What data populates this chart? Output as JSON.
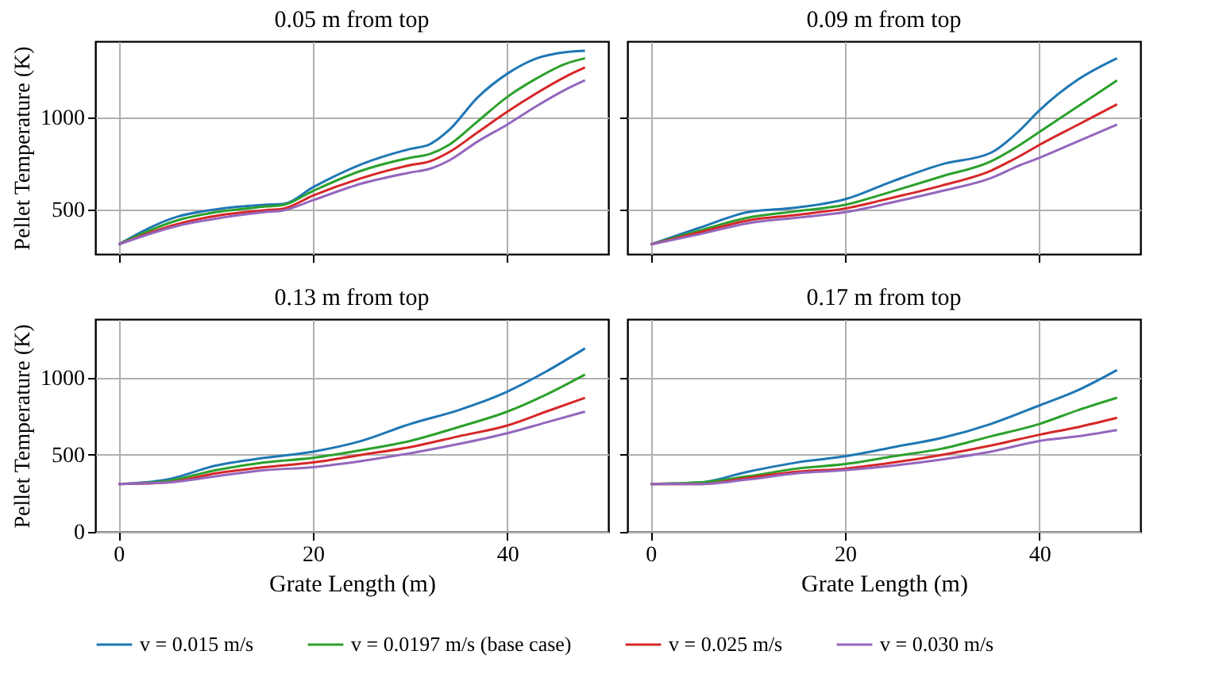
{
  "chart_data": [
    {
      "type": "line",
      "title": "0.05 m from top",
      "ylabel": "Pellet Temperature (K)",
      "x": [
        0,
        6,
        10,
        15,
        17,
        20,
        25,
        30,
        32,
        34,
        37,
        40,
        43,
        46,
        48
      ],
      "xlim": [
        -2.4,
        50.4
      ],
      "xticks": [
        0,
        20,
        40
      ],
      "ylim": [
        258,
        1412
      ],
      "yticks": [
        500,
        1000
      ],
      "grid": true,
      "legend": "bottom",
      "tick_labels": "y",
      "series": [
        {
          "name": "v = 0.015 m/s",
          "color": "#1f77b4",
          "values": [
            310,
            460,
            500,
            525,
            530,
            620,
            745,
            828,
            853,
            930,
            1110,
            1236,
            1319,
            1353,
            1360
          ]
        },
        {
          "name": "v = 0.0197 m/s (base case)",
          "color": "#2ca02c",
          "values": [
            310,
            440,
            485,
            515,
            525,
            600,
            710,
            780,
            800,
            850,
            980,
            1110,
            1210,
            1290,
            1320
          ]
        },
        {
          "name": "v = 0.025 m/s",
          "color": "#d62728",
          "values": [
            310,
            420,
            465,
            495,
            505,
            575,
            670,
            740,
            760,
            810,
            920,
            1030,
            1130,
            1220,
            1270
          ]
        },
        {
          "name": "v = 0.030 m/s",
          "color": "#9467bd",
          "values": [
            310,
            410,
            450,
            485,
            495,
            550,
            640,
            700,
            720,
            765,
            870,
            960,
            1060,
            1150,
            1200
          ]
        }
      ]
    },
    {
      "type": "line",
      "title": "0.09 m from top",
      "x": [
        0,
        5,
        10,
        15,
        20,
        25,
        30,
        35,
        38,
        40,
        44,
        48
      ],
      "xlim": [
        -2.4,
        50.4
      ],
      "xticks": [
        0,
        20,
        40
      ],
      "ylim": [
        258,
        1412
      ],
      "yticks": [
        500,
        1000
      ],
      "grid": true,
      "legend": "bottom",
      "tick_labels": false,
      "series": [
        {
          "name": "v = 0.015 m/s",
          "color": "#1f77b4",
          "values": [
            310,
            400,
            485,
            510,
            555,
            655,
            745,
            807,
            930,
            1037,
            1205,
            1320
          ]
        },
        {
          "name": "v = 0.0197 m/s (base case)",
          "color": "#2ca02c",
          "values": [
            310,
            385,
            455,
            490,
            525,
            600,
            680,
            760,
            850,
            920,
            1060,
            1200
          ]
        },
        {
          "name": "v = 0.025 m/s",
          "color": "#d62728",
          "values": [
            310,
            375,
            440,
            470,
            505,
            565,
            630,
            710,
            790,
            850,
            960,
            1070
          ]
        },
        {
          "name": "v = 0.030 m/s",
          "color": "#9467bd",
          "values": [
            310,
            365,
            425,
            455,
            485,
            540,
            600,
            670,
            740,
            780,
            870,
            960
          ]
        }
      ]
    },
    {
      "type": "line",
      "title": "0.13 m from top",
      "xlabel": "Grate Length (m)",
      "ylabel": "Pellet Temperature (K)",
      "x": [
        0,
        5,
        10,
        15,
        20,
        25,
        30,
        35,
        40,
        44,
        48
      ],
      "xlim": [
        -2.4,
        50.4
      ],
      "xticks": [
        0,
        20,
        40
      ],
      "ylim": [
        0,
        1380
      ],
      "yticks": [
        0,
        500,
        1000
      ],
      "grid": true,
      "legend": "bottom",
      "series": [
        {
          "name": "v = 0.015 m/s",
          "color": "#1f77b4",
          "values": [
            310,
            340,
            430,
            480,
            520,
            590,
            700,
            790,
            910,
            1040,
            1190
          ]
        },
        {
          "name": "v = 0.0197 m/s (base case)",
          "color": "#2ca02c",
          "values": [
            310,
            330,
            400,
            450,
            480,
            530,
            590,
            680,
            780,
            890,
            1020
          ]
        },
        {
          "name": "v = 0.025 m/s",
          "color": "#d62728",
          "values": [
            310,
            320,
            380,
            420,
            450,
            500,
            550,
            620,
            690,
            780,
            870
          ]
        },
        {
          "name": "v = 0.030 m/s",
          "color": "#9467bd",
          "values": [
            310,
            320,
            360,
            400,
            420,
            460,
            510,
            570,
            640,
            710,
            780
          ]
        }
      ]
    },
    {
      "type": "line",
      "title": "0.17 m from top",
      "xlabel": "Grate Length (m)",
      "x": [
        0,
        5,
        10,
        15,
        20,
        25,
        30,
        35,
        40,
        44,
        48
      ],
      "xlim": [
        -2.4,
        50.4
      ],
      "xticks": [
        0,
        20,
        40
      ],
      "ylim": [
        0,
        1380
      ],
      "yticks": [
        0,
        500,
        1000
      ],
      "grid": true,
      "legend": "bottom",
      "tick_labels": "x",
      "series": [
        {
          "name": "v = 0.015 m/s",
          "color": "#1f77b4",
          "values": [
            310,
            320,
            390,
            450,
            490,
            550,
            610,
            700,
            820,
            920,
            1050
          ]
        },
        {
          "name": "v = 0.0197 m/s (base case)",
          "color": "#2ca02c",
          "values": [
            310,
            320,
            360,
            410,
            440,
            490,
            540,
            620,
            700,
            790,
            870
          ]
        },
        {
          "name": "v = 0.025 m/s",
          "color": "#d62728",
          "values": [
            310,
            310,
            350,
            390,
            410,
            450,
            500,
            560,
            630,
            680,
            740
          ]
        },
        {
          "name": "v = 0.030 m/s",
          "color": "#9467bd",
          "values": [
            310,
            310,
            340,
            380,
            400,
            430,
            470,
            520,
            590,
            620,
            660
          ]
        }
      ]
    }
  ]
}
